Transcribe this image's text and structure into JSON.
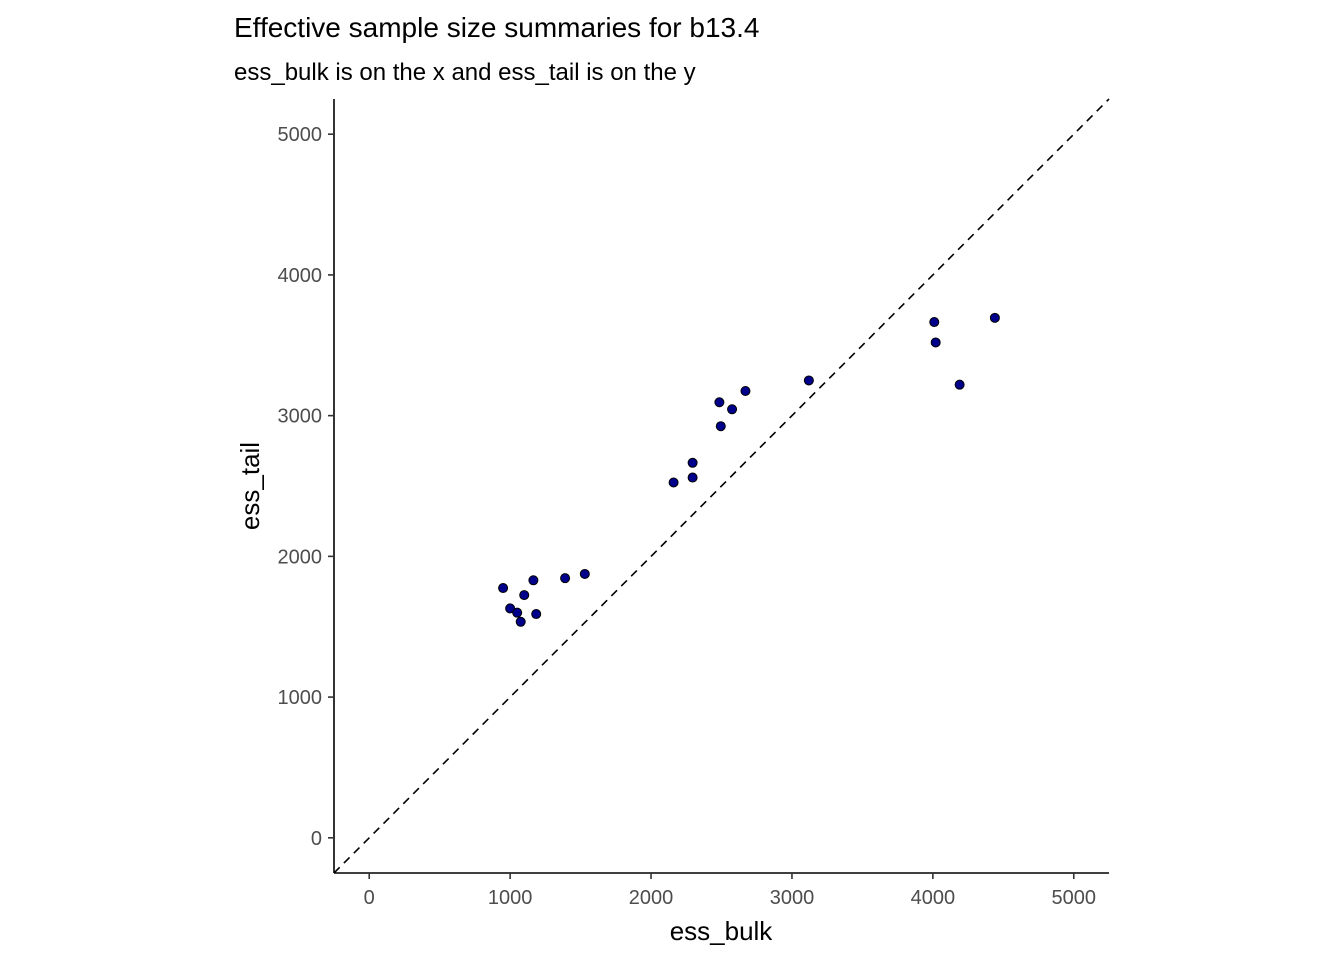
{
  "chart_data": {
    "type": "scatter",
    "title": "Effective sample size summaries for b13.4",
    "subtitle": "ess_bulk is on the x and ess_tail is on the y",
    "xlabel": "ess_bulk",
    "ylabel": "ess_tail",
    "xlim": [
      -250,
      5250
    ],
    "ylim": [
      -250,
      5250
    ],
    "xticks": [
      "0",
      "1000",
      "2000",
      "3000",
      "4000",
      "5000"
    ],
    "yticks": [
      "0",
      "1000",
      "2000",
      "3000",
      "4000",
      "5000"
    ],
    "grid": false,
    "point_color": "#00008b",
    "reference_line": {
      "style": "dashed",
      "slope": 1,
      "intercept": 0
    },
    "points": [
      {
        "x": 950,
        "y": 1775
      },
      {
        "x": 1000,
        "y": 1630
      },
      {
        "x": 1050,
        "y": 1600
      },
      {
        "x": 1075,
        "y": 1535
      },
      {
        "x": 1100,
        "y": 1725
      },
      {
        "x": 1165,
        "y": 1830
      },
      {
        "x": 1185,
        "y": 1590
      },
      {
        "x": 1390,
        "y": 1845
      },
      {
        "x": 1530,
        "y": 1875
      },
      {
        "x": 2160,
        "y": 2525
      },
      {
        "x": 2295,
        "y": 2665
      },
      {
        "x": 2295,
        "y": 2560
      },
      {
        "x": 2485,
        "y": 3095
      },
      {
        "x": 2495,
        "y": 2925
      },
      {
        "x": 2575,
        "y": 3045
      },
      {
        "x": 2670,
        "y": 3175
      },
      {
        "x": 3120,
        "y": 3250
      },
      {
        "x": 4010,
        "y": 3665
      },
      {
        "x": 4020,
        "y": 3520
      },
      {
        "x": 4190,
        "y": 3220
      },
      {
        "x": 4440,
        "y": 3695
      }
    ]
  }
}
